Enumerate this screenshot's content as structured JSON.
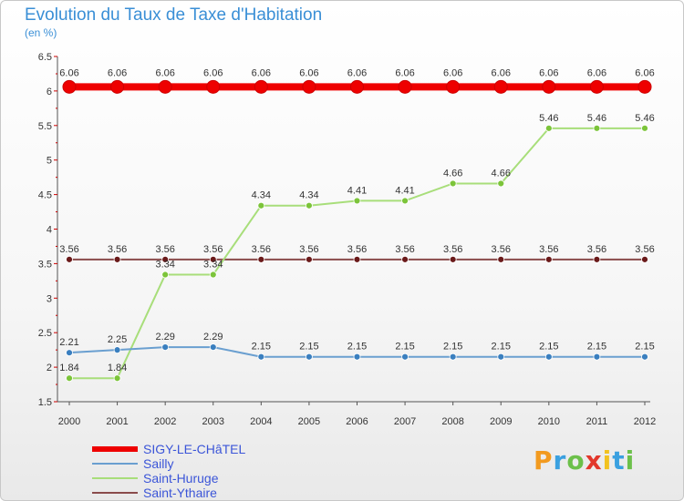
{
  "header": {
    "title": "Evolution du Taux de Taxe d'Habitation",
    "subtitle": "(en %)"
  },
  "chart_data": {
    "type": "line",
    "title": "Evolution du Taux de Taxe d'Habitation",
    "ylabel": "(en %)",
    "xlabel": "",
    "x": [
      "2000",
      "2001",
      "2002",
      "2003",
      "2004",
      "2005",
      "2006",
      "2007",
      "2008",
      "2009",
      "2010",
      "2011",
      "2012"
    ],
    "ylim": [
      1.5,
      6.5
    ],
    "yticks": [
      "1.5",
      "2",
      "2.5",
      "3",
      "3.5",
      "4",
      "4.5",
      "5",
      "5.5",
      "6",
      "6.5"
    ],
    "grid": false,
    "legend_position": "bottom-left",
    "series": [
      {
        "name": "SIGY-LE-CHâTEL",
        "color": "#ee0000",
        "marker": "#ee0000",
        "values": [
          6.06,
          6.06,
          6.06,
          6.06,
          6.06,
          6.06,
          6.06,
          6.06,
          6.06,
          6.06,
          6.06,
          6.06,
          6.06
        ],
        "labels": [
          "6.06",
          "6.06",
          "6.06",
          "6.06",
          "6.06",
          "6.06",
          "6.06",
          "6.06",
          "6.06",
          "6.06",
          "6.06",
          "6.06",
          "6.06"
        ]
      },
      {
        "name": "Sailly",
        "color": "#6a9fd0",
        "marker": "#3a7fbf",
        "values": [
          2.21,
          2.25,
          2.29,
          2.29,
          2.15,
          2.15,
          2.15,
          2.15,
          2.15,
          2.15,
          2.15,
          2.15,
          2.15
        ],
        "labels": [
          "2.21",
          "2.25",
          "2.29",
          "2.29",
          "2.15",
          "2.15",
          "2.15",
          "2.15",
          "2.15",
          "2.15",
          "2.15",
          "2.15",
          "2.15"
        ]
      },
      {
        "name": "Saint-Huruge",
        "color": "#a8de7a",
        "marker": "#7cc43a",
        "values": [
          1.84,
          1.84,
          3.34,
          3.34,
          4.34,
          4.34,
          4.41,
          4.41,
          4.66,
          4.66,
          5.46,
          5.46,
          5.46
        ],
        "labels": [
          "1.84",
          "1.84",
          "3.34",
          "3.34",
          "4.34",
          "4.34",
          "4.41",
          "4.41",
          "4.66",
          "4.66",
          "5.46",
          "5.46",
          "5.46"
        ]
      },
      {
        "name": "Saint-Ythaire",
        "color": "#8a4b4b",
        "marker": "#6a1a1a",
        "values": [
          3.56,
          3.56,
          3.56,
          3.56,
          3.56,
          3.56,
          3.56,
          3.56,
          3.56,
          3.56,
          3.56,
          3.56,
          3.56
        ],
        "labels": [
          "3.56",
          "3.56",
          "3.56",
          "3.56",
          "3.56",
          "3.56",
          "3.56",
          "3.56",
          "3.56",
          "3.56",
          "3.56",
          "3.56",
          "3.56"
        ]
      }
    ]
  },
  "legend": {
    "items": [
      "SIGY-LE-CHâTEL",
      "Sailly",
      "Saint-Huruge",
      "Saint-Ythaire"
    ]
  },
  "logo": {
    "letters": [
      "P",
      "r",
      "o",
      "x",
      "i",
      "t",
      "i"
    ],
    "colors": [
      "#f29a1f",
      "#3aa0e0",
      "#6cc04a",
      "#e2372b",
      "#f2c21f",
      "#3aa0e0",
      "#6cc04a"
    ]
  }
}
